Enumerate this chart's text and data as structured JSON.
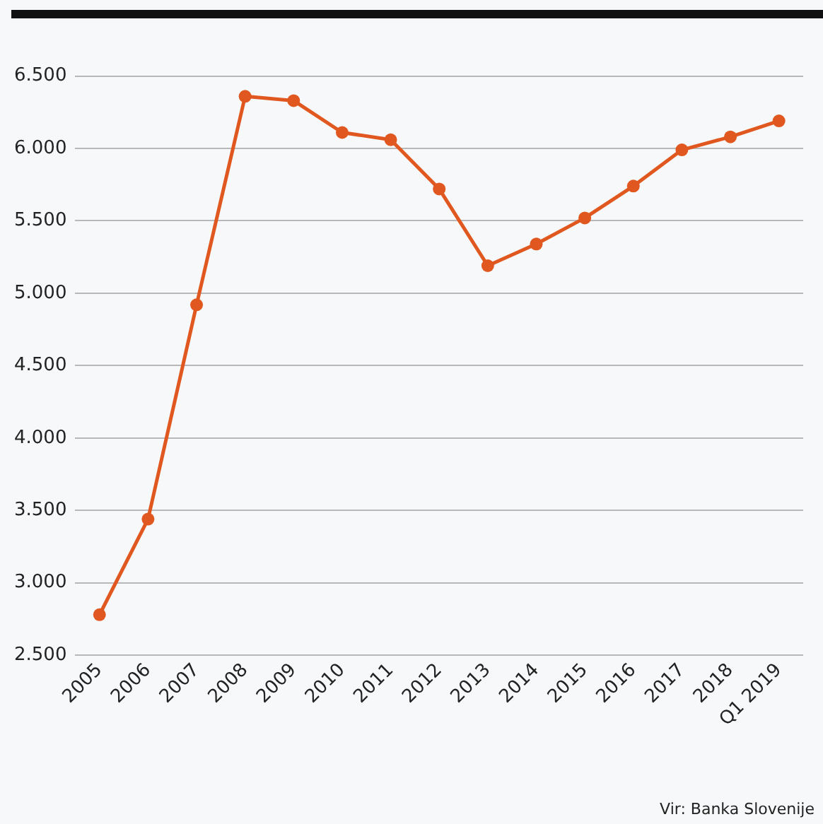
{
  "chart_data": {
    "type": "line",
    "categories": [
      "2005",
      "2006",
      "2007",
      "2008",
      "2009",
      "2010",
      "2011",
      "2012",
      "2013",
      "2014",
      "2015",
      "2016",
      "2017",
      "2018",
      "Q1 2019"
    ],
    "series": [
      {
        "color": "#e0581f",
        "values": [
          2780,
          3440,
          4920,
          6360,
          6330,
          6110,
          6060,
          5720,
          5190,
          5340,
          5520,
          5740,
          5990,
          6080,
          6190
        ]
      }
    ],
    "ylim": [
      2500,
      6500
    ],
    "yticks": [
      {
        "value": 2500,
        "label": "2.500"
      },
      {
        "value": 3000,
        "label": "3.000"
      },
      {
        "value": 3500,
        "label": "3.500"
      },
      {
        "value": 4000,
        "label": "4.000"
      },
      {
        "value": 4500,
        "label": "4.500"
      },
      {
        "value": 5000,
        "label": "5.000"
      },
      {
        "value": 5500,
        "label": "5.500"
      },
      {
        "value": 6000,
        "label": "6.000"
      },
      {
        "value": 6500,
        "label": "6.500"
      }
    ],
    "grid": "y",
    "legend": false,
    "marker": "circle",
    "line_style": "solid",
    "annotations": [
      "Vir: Banka Slovenije"
    ]
  }
}
